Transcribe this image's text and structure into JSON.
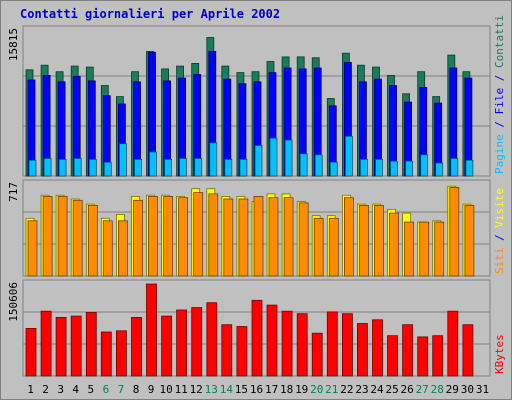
{
  "chart_data": {
    "type": "bar",
    "title": "Contatti giornalieri per Aprile 2002",
    "categories": [
      "1",
      "2",
      "3",
      "4",
      "5",
      "6",
      "7",
      "8",
      "9",
      "10",
      "11",
      "12",
      "13",
      "14",
      "15",
      "16",
      "17",
      "18",
      "19",
      "20",
      "21",
      "22",
      "23",
      "24",
      "25",
      "26",
      "27",
      "28",
      "29",
      "30",
      "31"
    ],
    "weekend_days": [
      "6",
      "7",
      "13",
      "14",
      "20",
      "21",
      "27",
      "28"
    ],
    "panels": [
      {
        "id": "hits",
        "y_max_label": "15815",
        "ylim": [
          0,
          15815
        ],
        "side_labels": [
          "Pagine",
          "File",
          "Contatti"
        ],
        "series": [
          {
            "name": "Contatti",
            "color": "#1a7c5c",
            "values": [
              11500,
              12000,
              11300,
              11900,
              11800,
              9800,
              8600,
              11300,
              13500,
              11600,
              11900,
              12200,
              15000,
              11900,
              11200,
              11300,
              12400,
              12900,
              12900,
              12800,
              8400,
              13300,
              12000,
              11800,
              10900,
              8900,
              11300,
              8600,
              13100,
              11300,
              0
            ]
          },
          {
            "name": "File",
            "color": "#0000ff",
            "values": [
              10400,
              10900,
              10200,
              10800,
              10300,
              8700,
              7800,
              10200,
              13400,
              10300,
              10600,
              11000,
              13500,
              10500,
              10000,
              10200,
              11200,
              11700,
              11600,
              11700,
              7600,
              12300,
              10200,
              10500,
              9800,
              8000,
              9600,
              7900,
              11700,
              10600,
              0
            ]
          },
          {
            "name": "Pagine",
            "color": "#00c0ff",
            "values": [
              1700,
              1900,
              1800,
              1900,
              1800,
              1500,
              3500,
              1800,
              2600,
              1800,
              1900,
              1900,
              3600,
              1800,
              1800,
              3300,
              4100,
              3900,
              2400,
              2300,
              1500,
              4300,
              1800,
              1800,
              1600,
              1600,
              2300,
              1400,
              1900,
              1700,
              0
            ]
          }
        ]
      },
      {
        "id": "visits",
        "y_max_label": "717",
        "ylim": [
          0,
          717
        ],
        "side_labels": [
          "Siti",
          "Visite"
        ],
        "series": [
          {
            "name": "Visite",
            "color": "#ffff00",
            "values": [
              450,
              630,
              630,
              600,
              560,
              450,
              480,
              620,
              630,
              630,
              620,
              680,
              680,
              620,
              620,
              580,
              640,
              640,
              580,
              470,
              470,
              630,
              560,
              560,
              520,
              490,
              420,
              430,
              700,
              560,
              0
            ]
          },
          {
            "name": "Siti",
            "color": "#ff8c00",
            "values": [
              430,
              620,
              620,
              590,
              550,
              430,
              430,
              590,
              620,
              620,
              610,
              650,
              640,
              600,
              600,
              620,
              610,
              610,
              570,
              450,
              450,
              610,
              550,
              550,
              490,
              420,
              420,
              420,
              690,
              550,
              0
            ]
          }
        ]
      },
      {
        "id": "kbytes",
        "y_max_label": "150606",
        "ylim": [
          0,
          150606
        ],
        "side_labels": [
          "KBytes"
        ],
        "series": [
          {
            "name": "KBytes",
            "color": "#ff0000",
            "values": [
              78000,
              106000,
              96000,
              98000,
              104000,
              72000,
              74000,
              96000,
              150606,
              98000,
              108000,
              112000,
              120000,
              84000,
              81000,
              124000,
              116000,
              106000,
              102000,
              70000,
              105000,
              102000,
              86000,
              92000,
              66000,
              84000,
              64000,
              66000,
              106000,
              84000,
              0
            ]
          }
        ]
      }
    ],
    "colors": {
      "background": "#c0c0c0",
      "title": "#0000cc",
      "axis_text": "#000000",
      "weekend_text": "#008060",
      "separator": "#0000ff",
      "gridline": "#808080"
    }
  }
}
